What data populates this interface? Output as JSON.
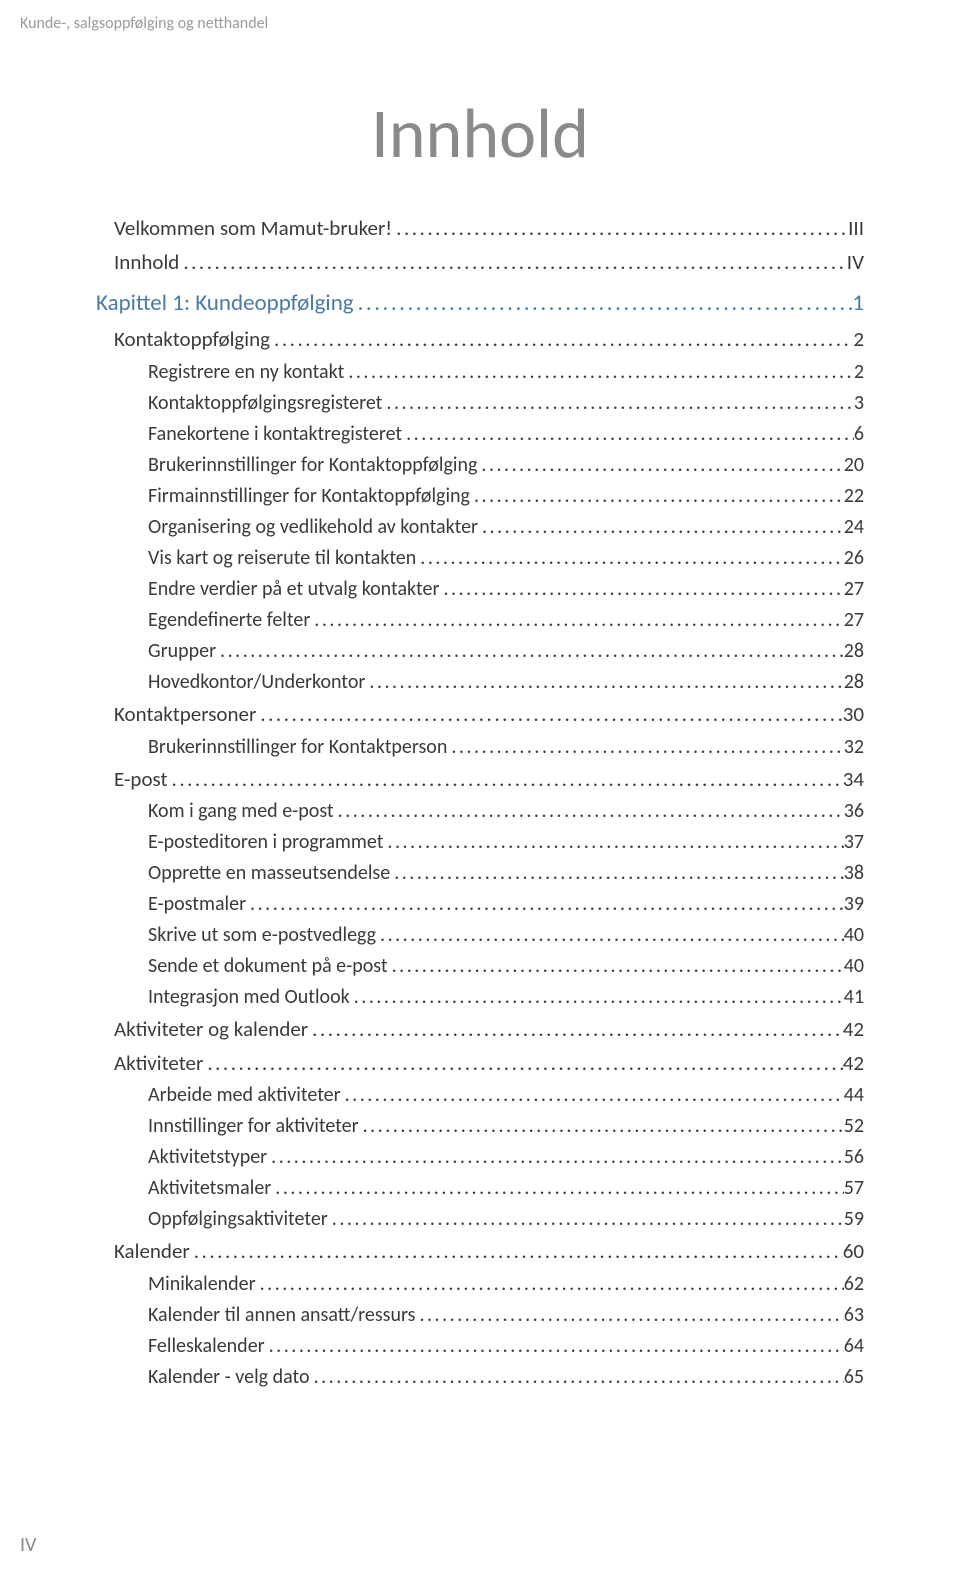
{
  "running_header": "Kunde-, salgsoppfølging og netthandel",
  "main_title": "Innhold",
  "page_number": "IV",
  "colors": {
    "heading_blue": "#4a7aa6",
    "body_text": "#3a3a3a",
    "muted_gray": "#8a8a8a",
    "background": "#ffffff"
  },
  "toc": [
    {
      "level": 1,
      "label": "Velkommen som Mamut-bruker!",
      "page": "III"
    },
    {
      "level": 1,
      "label": "Innhold",
      "page": "IV"
    },
    {
      "level": 0,
      "label": "Kapittel 1: Kundeoppfølging",
      "page": "1"
    },
    {
      "level": 1,
      "label": "Kontaktoppfølging",
      "page": "2"
    },
    {
      "level": 2,
      "label": "Registrere en ny kontakt",
      "page": "2"
    },
    {
      "level": 2,
      "label": "Kontaktoppfølgingsregisteret",
      "page": "3"
    },
    {
      "level": 2,
      "label": "Fanekortene i kontaktregisteret",
      "page": "6"
    },
    {
      "level": 2,
      "label": "Brukerinnstillinger for Kontaktoppfølging",
      "page": "20"
    },
    {
      "level": 2,
      "label": "Firmainnstillinger for Kontaktoppfølging",
      "page": "22"
    },
    {
      "level": 2,
      "label": "Organisering og vedlikehold av kontakter",
      "page": "24"
    },
    {
      "level": 2,
      "label": "Vis kart og reiserute til kontakten",
      "page": "26"
    },
    {
      "level": 2,
      "label": "Endre verdier på et utvalg kontakter",
      "page": "27"
    },
    {
      "level": 2,
      "label": "Egendefinerte felter",
      "page": "27"
    },
    {
      "level": 2,
      "label": "Grupper",
      "page": "28"
    },
    {
      "level": 2,
      "label": "Hovedkontor/Underkontor",
      "page": "28"
    },
    {
      "level": 1,
      "label": "Kontaktpersoner",
      "page": "30"
    },
    {
      "level": 2,
      "label": "Brukerinnstillinger for Kontaktperson",
      "page": "32"
    },
    {
      "level": 1,
      "label": "E-post",
      "page": "34"
    },
    {
      "level": 2,
      "label": "Kom i gang med e-post",
      "page": "36"
    },
    {
      "level": 2,
      "label": "E-posteditoren i programmet",
      "page": "37"
    },
    {
      "level": 2,
      "label": "Opprette en masseutsendelse",
      "page": "38"
    },
    {
      "level": 2,
      "label": "E-postmaler",
      "page": "39"
    },
    {
      "level": 2,
      "label": "Skrive ut som e-postvedlegg",
      "page": "40"
    },
    {
      "level": 2,
      "label": "Sende et dokument på e-post",
      "page": "40"
    },
    {
      "level": 2,
      "label": "Integrasjon med Outlook",
      "page": "41"
    },
    {
      "level": 1,
      "label": "Aktiviteter og kalender",
      "page": "42"
    },
    {
      "level": 1,
      "label": "Aktiviteter",
      "page": "42"
    },
    {
      "level": 2,
      "label": "Arbeide med aktiviteter",
      "page": "44"
    },
    {
      "level": 2,
      "label": "Innstillinger for aktiviteter",
      "page": "52"
    },
    {
      "level": 2,
      "label": "Aktivitetstyper",
      "page": "56"
    },
    {
      "level": 2,
      "label": "Aktivitetsmaler",
      "page": "57"
    },
    {
      "level": 2,
      "label": "Oppfølgingsaktiviteter",
      "page": "59"
    },
    {
      "level": 1,
      "label": "Kalender",
      "page": "60"
    },
    {
      "level": 2,
      "label": "Minikalender",
      "page": "62"
    },
    {
      "level": 2,
      "label": "Kalender til annen ansatt/ressurs",
      "page": "63"
    },
    {
      "level": 2,
      "label": "Felleskalender",
      "page": "64"
    },
    {
      "level": 2,
      "label": "Kalender - velg dato",
      "page": "65"
    }
  ]
}
